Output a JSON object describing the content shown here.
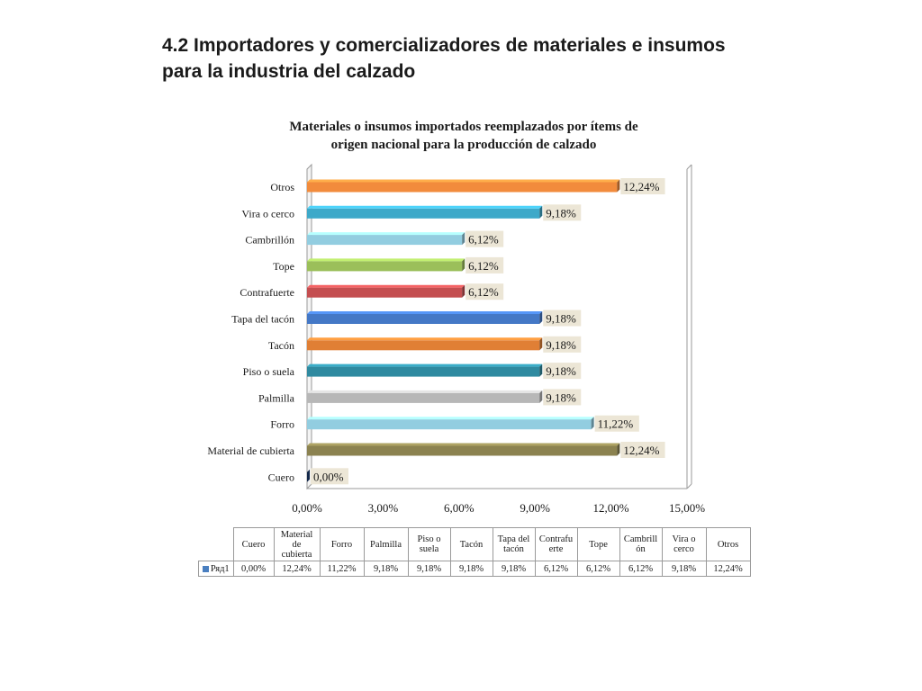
{
  "slide": {
    "title_line1": "4.2 Importadores y comercializadores de materiales e insumos",
    "title_line2": "para la industria del calzado"
  },
  "chart_data": {
    "type": "bar",
    "orientation": "horizontal",
    "title_line1": "Materiales o insumos importados reemplazados por ítems de",
    "title_line2": "origen nacional para la producción de calzado",
    "categories": [
      "Cuero",
      "Material de cubierta",
      "Forro",
      "Palmilla",
      "Piso o suela",
      "Tacón",
      "Tapa del tacón",
      "Contrafuerte",
      "Tope",
      "Cambrillón",
      "Vira o cerco",
      "Otros"
    ],
    "series": [
      {
        "name": "Ряд1",
        "values": [
          0.0,
          12.24,
          11.22,
          9.18,
          9.18,
          9.18,
          9.18,
          6.12,
          6.12,
          6.12,
          9.18,
          12.24
        ],
        "labels": [
          "0,00%",
          "12,24%",
          "11,22%",
          "9,18%",
          "9,18%",
          "9,18%",
          "9,18%",
          "6,12%",
          "6,12%",
          "6,12%",
          "9,18%",
          "12,24%"
        ]
      }
    ],
    "colors": [
      "#1f3f73",
      "#8b8250",
      "#92cde0",
      "#b7b7b7",
      "#2f8aa0",
      "#e07f35",
      "#4478c6",
      "#c44e50",
      "#9bbf5a",
      "#92cde0",
      "#3da9c9",
      "#f28b3c"
    ],
    "xlim": [
      0,
      15
    ],
    "xticks": [
      0,
      3,
      6,
      9,
      12,
      15
    ],
    "xtick_labels": [
      "0,00%",
      "3,00%",
      "6,00%",
      "9,00%",
      "12,00%",
      "15,00%"
    ],
    "grid": false,
    "data_table": {
      "headers": [
        "Cuero",
        "Material de cubierta",
        "Forro",
        "Palmilla",
        "Piso o suela",
        "Tacón",
        "Tapa del tacón",
        "Contrafu erte",
        "Tope",
        "Cambrill ón",
        "Vira o cerco",
        "Otros"
      ],
      "row_label": "Ряд1",
      "values": [
        "0,00%",
        "12,24%",
        "11,22%",
        "9,18%",
        "9,18%",
        "9,18%",
        "9,18%",
        "6,12%",
        "6,12%",
        "6,12%",
        "9,18%",
        "12,24%"
      ]
    }
  }
}
